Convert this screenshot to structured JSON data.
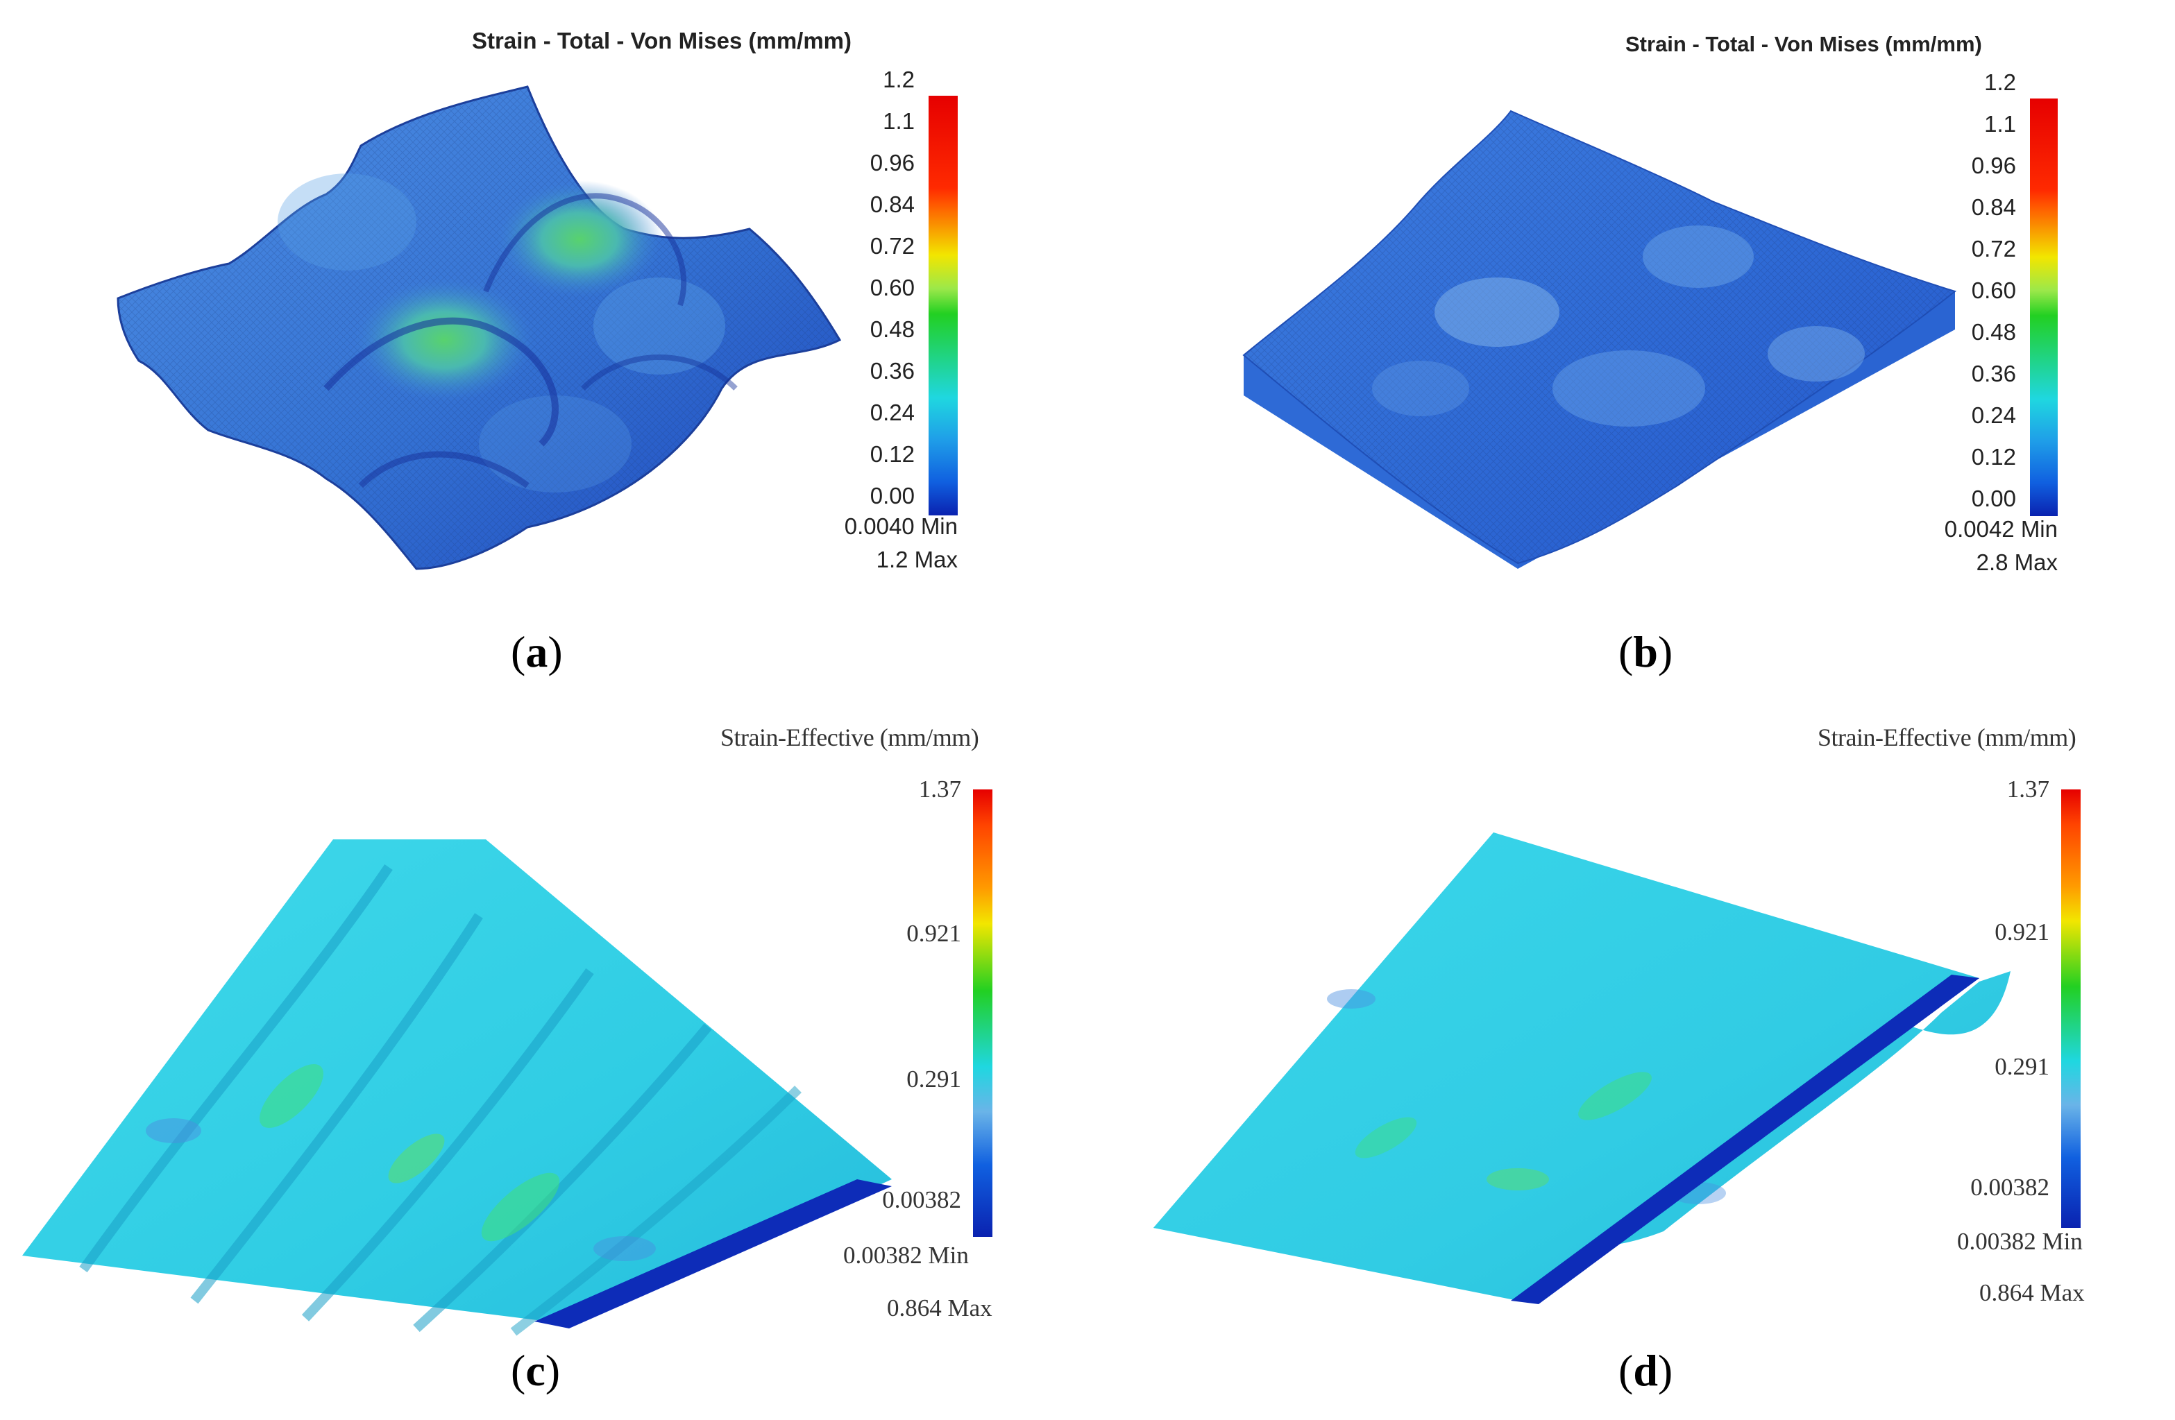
{
  "figure": {
    "panels": [
      {
        "id": "a",
        "caption_letter": "a",
        "legend_title": "Strain - Total - Von Mises (mm/mm)",
        "legend_ticks": [
          "1.2",
          "1.1",
          "0.96",
          "0.84",
          "0.72",
          "0.60",
          "0.48",
          "0.36",
          "0.24",
          "0.12",
          "0.00"
        ],
        "min_label": "0.0040  Min",
        "max_label": "1.2  Max",
        "surface": "egg-box"
      },
      {
        "id": "b",
        "caption_letter": "b",
        "legend_title": "Strain - Total - Von Mises (mm/mm)",
        "legend_ticks": [
          "1.2",
          "1.1",
          "0.96",
          "0.84",
          "0.72",
          "0.60",
          "0.48",
          "0.36",
          "0.24",
          "0.12",
          "0.00"
        ],
        "min_label": "0.0042  Min",
        "max_label": "2.8  Max",
        "surface": "flat-slab"
      },
      {
        "id": "c",
        "caption_letter": "c",
        "legend_title": "Strain-Effective (mm/mm)",
        "legend_ticks": [
          "1.37",
          "0.921",
          "0.291",
          "0.00382"
        ],
        "min_label": "0.00382 Min",
        "max_label": "0.864 Max",
        "surface": "corrugated-sheet"
      },
      {
        "id": "d",
        "caption_letter": "d",
        "legend_title": "Strain-Effective (mm/mm)",
        "legend_ticks": [
          "1.37",
          "0.921",
          "0.291",
          "0.00382"
        ],
        "min_label": "0.00382 Min",
        "max_label": "0.864 Max",
        "surface": "flat-sheet"
      }
    ],
    "colors": {
      "scale_top": "#e60000",
      "scale_hot": "#ff4400",
      "scale_yellow": "#f2e600",
      "scale_green": "#22d022",
      "scale_cyan": "#1fd7e0",
      "scale_blue": "#1060e0",
      "scale_bottom": "#0a22b0",
      "mesh_blue": "#3a78d8",
      "sheet_cyan": "#34d2e8",
      "edge_darkblue": "#0d2cb8"
    }
  }
}
